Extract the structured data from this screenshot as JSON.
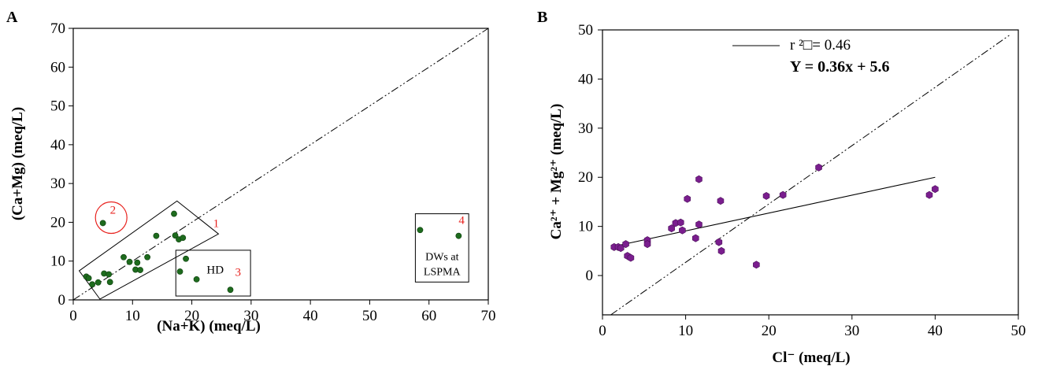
{
  "chart_data": [
    {
      "panel_label": "A",
      "type": "scatter",
      "xlabel": "(Na+K) (meq/L)",
      "ylabel": "(Ca+Mg)  (meq/L)",
      "xlim": [
        0,
        70
      ],
      "ylim": [
        0,
        70
      ],
      "xticks": [
        0,
        10,
        20,
        30,
        40,
        50,
        60,
        70
      ],
      "yticks": [
        0,
        10,
        20,
        30,
        40,
        50,
        60,
        70
      ],
      "grid": false,
      "marker_color": "#1e6b1e",
      "reference_line": {
        "style": "dash-dot",
        "from": [
          0,
          0
        ],
        "to": [
          70,
          70
        ]
      },
      "points": [
        {
          "x": 2.2,
          "y": 6.0
        },
        {
          "x": 2.6,
          "y": 5.6
        },
        {
          "x": 3.2,
          "y": 4.0
        },
        {
          "x": 4.2,
          "y": 4.5
        },
        {
          "x": 5.2,
          "y": 6.8
        },
        {
          "x": 6.0,
          "y": 6.6
        },
        {
          "x": 6.2,
          "y": 4.6
        },
        {
          "x": 8.5,
          "y": 11.0
        },
        {
          "x": 9.5,
          "y": 9.8
        },
        {
          "x": 10.5,
          "y": 7.8
        },
        {
          "x": 10.8,
          "y": 9.6
        },
        {
          "x": 11.3,
          "y": 7.7
        },
        {
          "x": 12.5,
          "y": 11.0
        },
        {
          "x": 14.0,
          "y": 16.5
        },
        {
          "x": 17.0,
          "y": 22.2
        },
        {
          "x": 17.2,
          "y": 16.6
        },
        {
          "x": 17.8,
          "y": 15.6
        },
        {
          "x": 18.5,
          "y": 16.0
        },
        {
          "x": 5.0,
          "y": 19.8
        },
        {
          "x": 18.0,
          "y": 7.3
        },
        {
          "x": 19.0,
          "y": 10.6
        },
        {
          "x": 20.8,
          "y": 5.3
        },
        {
          "x": 26.5,
          "y": 2.6
        },
        {
          "x": 58.5,
          "y": 18.0
        },
        {
          "x": 65.0,
          "y": 16.5
        }
      ],
      "annotations": {
        "group1": "1",
        "group2": "2",
        "group3": "3",
        "group4": "4",
        "hd": "HD",
        "dws_line1": "DWs at",
        "dws_line2": "LSPMA"
      },
      "annotation_color": "#e8231f"
    },
    {
      "panel_label": "B",
      "type": "scatter",
      "xlabel": "Cl⁻ (meq/L)",
      "ylabel": "Ca²⁺ + Mg²⁺  (meq/L)",
      "xlim": [
        0,
        50
      ],
      "ylim": [
        -8,
        50
      ],
      "xticks": [
        0,
        10,
        20,
        30,
        40,
        50
      ],
      "yticks": [
        0,
        10,
        20,
        30,
        40,
        50
      ],
      "grid": false,
      "marker_color": "#7a1e8e",
      "reference_line": {
        "style": "dash-dot",
        "from": [
          1,
          -8
        ],
        "to": [
          49,
          49
        ]
      },
      "regression": {
        "from": [
          1,
          5.8
        ],
        "to": [
          40,
          20
        ],
        "r2_label": "r ²□= 0.46",
        "equation": "Y = 0.36x + 5.6"
      },
      "legend_placement": "top-center",
      "points": [
        {
          "x": 1.4,
          "y": 5.8
        },
        {
          "x": 1.9,
          "y": 5.8
        },
        {
          "x": 2.2,
          "y": 5.6
        },
        {
          "x": 2.8,
          "y": 6.4
        },
        {
          "x": 3.0,
          "y": 4.0
        },
        {
          "x": 3.4,
          "y": 3.6
        },
        {
          "x": 5.4,
          "y": 7.2
        },
        {
          "x": 5.4,
          "y": 6.4
        },
        {
          "x": 8.3,
          "y": 9.6
        },
        {
          "x": 8.8,
          "y": 10.7
        },
        {
          "x": 9.4,
          "y": 10.8
        },
        {
          "x": 9.6,
          "y": 9.2
        },
        {
          "x": 10.2,
          "y": 15.6
        },
        {
          "x": 11.2,
          "y": 7.6
        },
        {
          "x": 11.6,
          "y": 10.4
        },
        {
          "x": 11.6,
          "y": 19.6
        },
        {
          "x": 14.0,
          "y": 6.8
        },
        {
          "x": 14.2,
          "y": 15.2
        },
        {
          "x": 14.3,
          "y": 5.0
        },
        {
          "x": 18.5,
          "y": 2.2
        },
        {
          "x": 19.7,
          "y": 16.2
        },
        {
          "x": 21.7,
          "y": 16.4
        },
        {
          "x": 26.0,
          "y": 22.0
        },
        {
          "x": 39.3,
          "y": 16.4
        },
        {
          "x": 40.0,
          "y": 17.6
        }
      ]
    }
  ]
}
